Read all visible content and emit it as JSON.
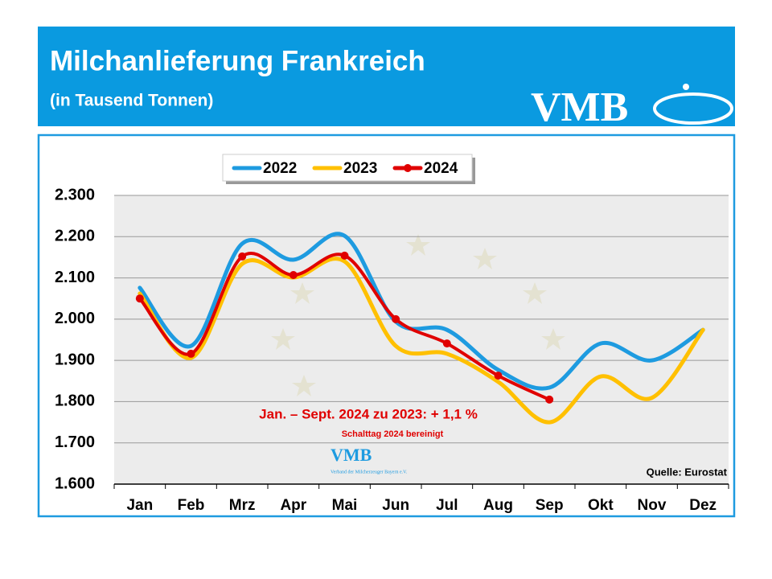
{
  "header": {
    "title": "Milchanlieferung Frankreich",
    "subtitle": "(in Tausend Tonnen)",
    "logo": "VMB"
  },
  "chart_data": {
    "type": "line",
    "categories": [
      "Jan",
      "Feb",
      "Mrz",
      "Apr",
      "Mai",
      "Jun",
      "Jul",
      "Aug",
      "Sep",
      "Okt",
      "Nov",
      "Dez"
    ],
    "series": [
      {
        "name": "2022",
        "color": "#1e9be0",
        "values": [
          2076,
          1935,
          2183,
          2144,
          2202,
          1994,
          1974,
          1877,
          1834,
          1941,
          1900,
          1974
        ]
      },
      {
        "name": "2023",
        "color": "#ffc000",
        "values": [
          2062,
          1906,
          2134,
          2101,
          2140,
          1935,
          1916,
          1848,
          1750,
          1861,
          1809,
          1974
        ]
      },
      {
        "name": "2024",
        "color": "#e00000",
        "values": [
          2050,
          1916,
          2152,
          2107,
          2154,
          2000,
          1941,
          1863,
          1805,
          null,
          null,
          null
        ],
        "markers": true
      }
    ],
    "ylim": [
      1600,
      2300
    ],
    "yticks": [
      {
        "value": 1600,
        "label": "1.600"
      },
      {
        "value": 1700,
        "label": "1.700"
      },
      {
        "value": 1800,
        "label": "1.800"
      },
      {
        "value": 1900,
        "label": "1.900"
      },
      {
        "value": 2000,
        "label": "2.000"
      },
      {
        "value": 2100,
        "label": "2.100"
      },
      {
        "value": 2200,
        "label": "2.200"
      },
      {
        "value": 2300,
        "label": "2.300"
      }
    ],
    "grid": true,
    "legend": "top",
    "annotations": [
      "Jan. – Sept. 2024 zu 2023:  + 1,1 %",
      "Schalttag 2024 bereinigt"
    ],
    "source": "Quelle: Eurostat",
    "watermark": {
      "logo": "VMB",
      "text": "Verband der Milcherzeuger Bayern e.V."
    }
  }
}
